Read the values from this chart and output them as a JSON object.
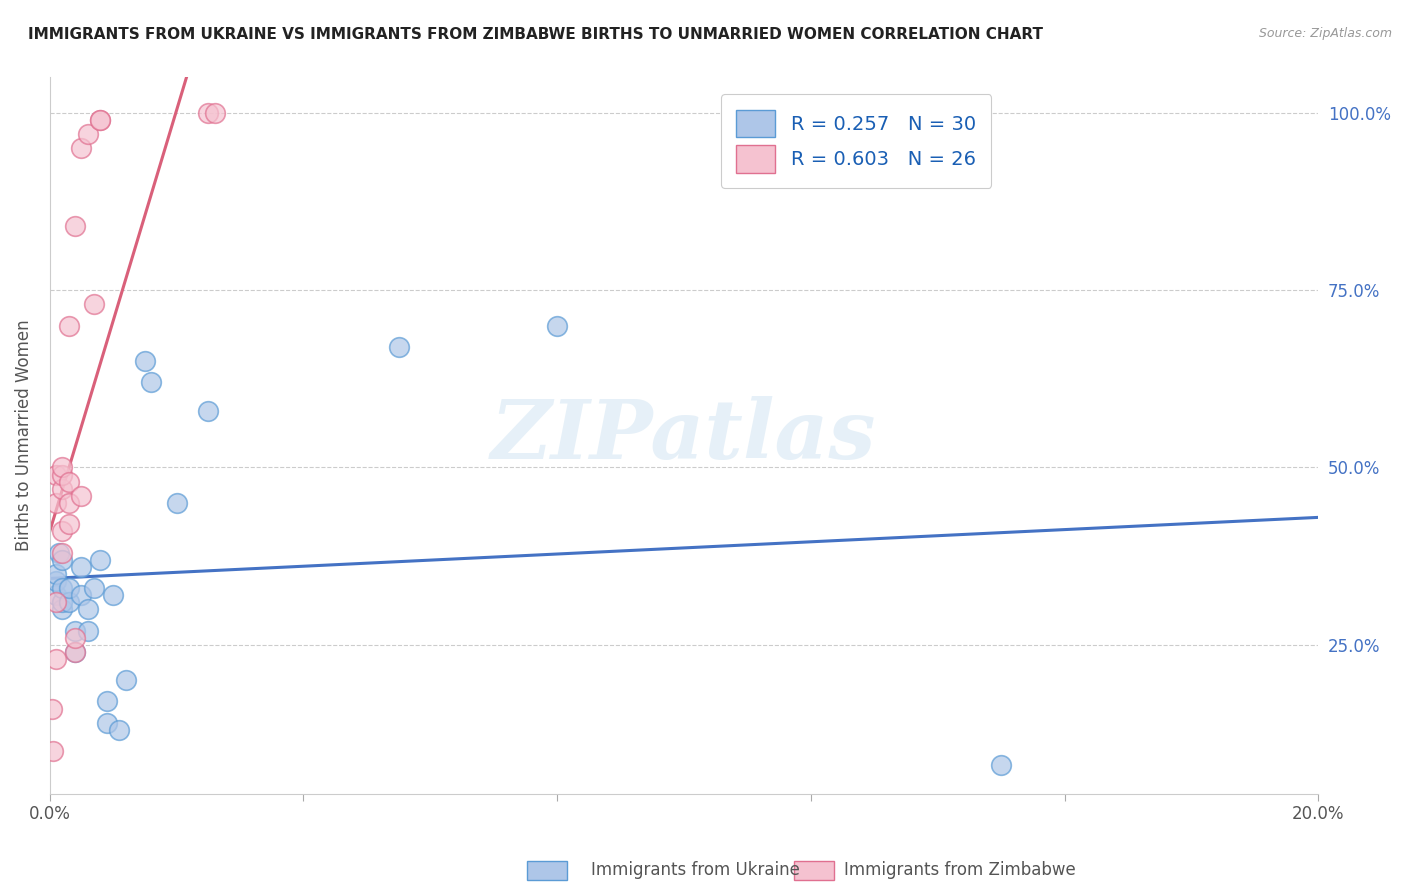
{
  "title": "IMMIGRANTS FROM UKRAINE VS IMMIGRANTS FROM ZIMBABWE BIRTHS TO UNMARRIED WOMEN CORRELATION CHART",
  "source": "Source: ZipAtlas.com",
  "ylabel": "Births to Unmarried Women",
  "xlim": [
    0.0,
    0.2
  ],
  "ylim": [
    0.04,
    1.05
  ],
  "ukraine_color": "#aec6e8",
  "ukraine_edge_color": "#5b9bd5",
  "zimbabwe_color": "#f5c2d0",
  "zimbabwe_edge_color": "#e07090",
  "ukraine_line_color": "#4472c4",
  "zimbabwe_line_color": "#d9607a",
  "legend_R_ukraine": "R = 0.257",
  "legend_N_ukraine": "N = 30",
  "legend_R_zimbabwe": "R = 0.603",
  "legend_N_zimbabwe": "N = 26",
  "watermark": "ZIPatlas",
  "ukraine_x": [
    0.001,
    0.001,
    0.001,
    0.0015,
    0.002,
    0.002,
    0.002,
    0.002,
    0.003,
    0.003,
    0.004,
    0.004,
    0.005,
    0.005,
    0.006,
    0.006,
    0.007,
    0.008,
    0.009,
    0.009,
    0.01,
    0.011,
    0.012,
    0.015,
    0.016,
    0.02,
    0.025,
    0.055,
    0.08,
    0.15
  ],
  "ukraine_y": [
    0.32,
    0.34,
    0.35,
    0.38,
    0.3,
    0.31,
    0.33,
    0.37,
    0.31,
    0.33,
    0.24,
    0.27,
    0.32,
    0.36,
    0.27,
    0.3,
    0.33,
    0.37,
    0.14,
    0.17,
    0.32,
    0.13,
    0.2,
    0.65,
    0.62,
    0.45,
    0.58,
    0.67,
    0.7,
    0.08
  ],
  "zimbabwe_x": [
    0.0003,
    0.0005,
    0.001,
    0.001,
    0.001,
    0.001,
    0.002,
    0.002,
    0.002,
    0.002,
    0.002,
    0.003,
    0.003,
    0.003,
    0.003,
    0.004,
    0.004,
    0.004,
    0.005,
    0.005,
    0.006,
    0.007,
    0.008,
    0.008,
    0.025,
    0.026
  ],
  "zimbabwe_y": [
    0.16,
    0.1,
    0.23,
    0.31,
    0.45,
    0.49,
    0.38,
    0.41,
    0.47,
    0.49,
    0.5,
    0.42,
    0.45,
    0.48,
    0.7,
    0.24,
    0.26,
    0.84,
    0.46,
    0.95,
    0.97,
    0.73,
    0.99,
    0.99,
    1.0,
    1.0
  ]
}
